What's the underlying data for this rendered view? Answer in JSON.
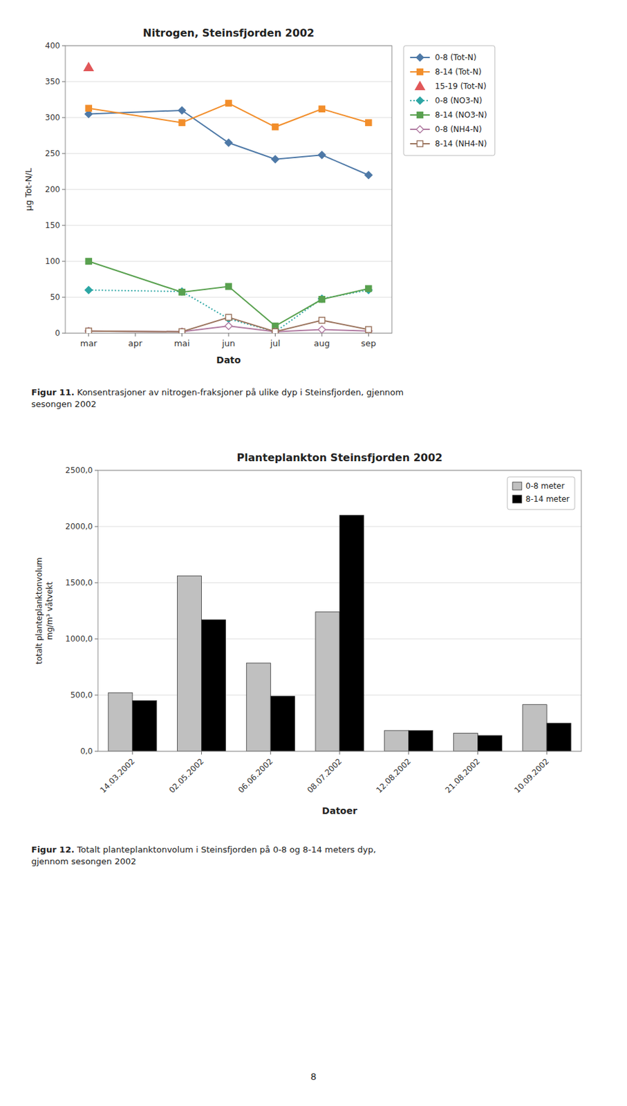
{
  "chart_data": [
    {
      "type": "line",
      "title": "Nitrogen, Steinsfjorden 2002",
      "x_label": "Dato",
      "y_label": "μg Tot-N/L",
      "categories": [
        "mar",
        "apr",
        "mai",
        "jun",
        "jul",
        "aug",
        "sep"
      ],
      "series": [
        {
          "name": "0-8 (Tot-N)",
          "x": [
            "mar",
            "mai",
            "jun",
            "jul",
            "aug",
            "sep"
          ],
          "values": [
            305,
            310,
            265,
            242,
            248,
            220
          ],
          "marker": "diamond",
          "line_style": "solid"
        },
        {
          "name": "8-14 (Tot-N)",
          "x": [
            "mar",
            "mai",
            "jun",
            "jul",
            "aug",
            "sep"
          ],
          "values": [
            313,
            293,
            320,
            287,
            312,
            293
          ],
          "marker": "square",
          "line_style": "solid"
        },
        {
          "name": "15-19 (Tot-N)",
          "x": [
            "mar"
          ],
          "values": [
            370
          ],
          "marker": "triangle",
          "line_style": "none"
        },
        {
          "name": "0-8 (NO3-N)",
          "x": [
            "mar",
            "mai",
            "jun",
            "jul",
            "aug",
            "sep"
          ],
          "values": [
            60,
            58,
            20,
            2,
            48,
            60
          ],
          "marker": "diamond",
          "line_style": "dotted"
        },
        {
          "name": "8-14 (NO3-N)",
          "x": [
            "mar",
            "mai",
            "jun",
            "jul",
            "aug",
            "sep"
          ],
          "values": [
            100,
            57,
            65,
            10,
            47,
            62
          ],
          "marker": "square",
          "line_style": "solid"
        },
        {
          "name": "0-8 (NH4-N)",
          "x": [
            "mar",
            "mai",
            "jun",
            "jul",
            "aug",
            "sep"
          ],
          "values": [
            3,
            2,
            10,
            2,
            5,
            3
          ],
          "marker": "open-diamond",
          "line_style": "solid"
        },
        {
          "name": "8-14 (NH4-N)",
          "x": [
            "mar",
            "mai",
            "jun",
            "jul",
            "aug",
            "sep"
          ],
          "values": [
            3,
            2,
            22,
            2,
            18,
            5
          ],
          "marker": "open-square",
          "line_style": "solid"
        }
      ],
      "ylim": [
        0,
        400
      ],
      "yticks": [
        0,
        50,
        100,
        150,
        200,
        250,
        300,
        350,
        400
      ],
      "grid": true,
      "legend": "right",
      "annotations": [
        "Figur 11.",
        " Konsentrasjoner av nitrogen-fraksjoner på ulike dyp i Steinsfjorden, gjennom\nsesongen 2002"
      ]
    },
    {
      "type": "bar",
      "title": "Planteplankton Steinsfjorden 2002",
      "x_label": "Datoer",
      "y_label": "totalt planteplanktonvolum\nmg/m³ våtvekt",
      "categories": [
        "14.03.2002",
        "02.05.2002",
        "06.06.2002",
        "08.07.2002",
        "12.08.2002",
        "21.08.2002",
        "10.09.2002"
      ],
      "series": [
        {
          "name": "0-8 meter",
          "color": "#c0c0c0",
          "values": [
            520,
            1560,
            785,
            1240,
            185,
            160,
            415
          ]
        },
        {
          "name": "8-14 meter",
          "color": "#000000",
          "values": [
            450,
            1170,
            490,
            2100,
            185,
            140,
            250
          ]
        }
      ],
      "ylim": [
        0,
        2500
      ],
      "yticks": [
        {
          "value": 0,
          "label": "0,0"
        },
        {
          "value": 500,
          "label": "500,0"
        },
        {
          "value": 1000,
          "label": "1000,0"
        },
        {
          "value": 1500,
          "label": "1500,0"
        },
        {
          "value": 2000,
          "label": "2000,0"
        },
        {
          "value": 2500,
          "label": "2500,0"
        }
      ],
      "grid": true,
      "legend": "upper right",
      "annotations": [
        "Figur 12.",
        " Totalt planteplanktonvolum i Steinsfjorden på 0-8 og 8-14 meters dyp,\ngjennom sesongen 2002",
        "8"
      ]
    }
  ]
}
